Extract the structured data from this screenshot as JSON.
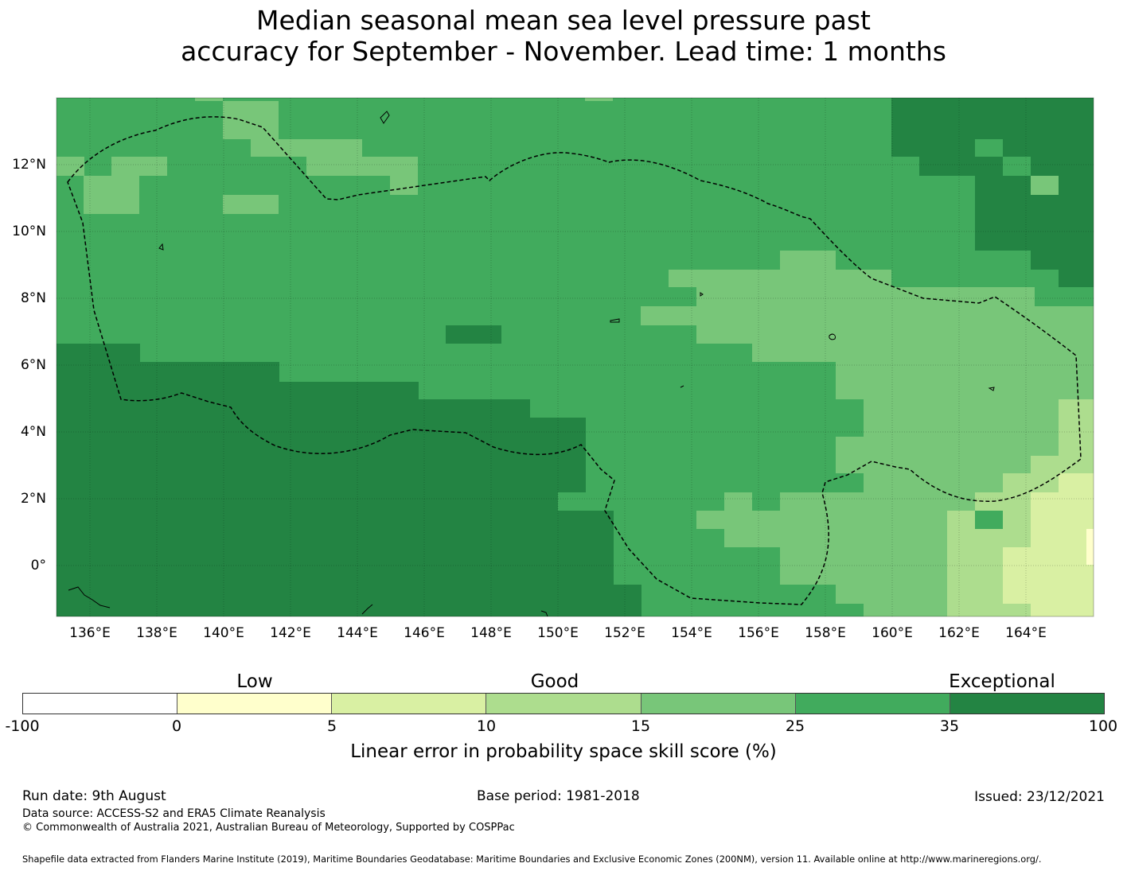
{
  "title": {
    "line1": "Median seasonal mean sea level pressure past",
    "line2": "accuracy for September - November. Lead time: 1 months"
  },
  "map": {
    "lon_range": [
      135,
      166
    ],
    "lat_range": [
      -1.5,
      14
    ],
    "lon_ticks": [
      "136°E",
      "138°E",
      "140°E",
      "142°E",
      "144°E",
      "146°E",
      "148°E",
      "150°E",
      "152°E",
      "154°E",
      "156°E",
      "158°E",
      "160°E",
      "162°E",
      "164°E"
    ],
    "lat_ticks": [
      "12°N",
      "10°N",
      "8°N",
      "6°N",
      "4°N",
      "2°N",
      "0°"
    ],
    "colors": {
      "exceptional": "#238443",
      "good_high": "#41ab5d",
      "good_mid": "#78c679",
      "good_low": "#addd8e",
      "low_high": "#d9f0a3",
      "low_low": "#ffffcc"
    },
    "grid": true
  },
  "colorbar": {
    "categories": [
      "Low",
      "Good",
      "Exceptional"
    ],
    "ticks": [
      "-100",
      "0",
      "5",
      "10",
      "15",
      "25",
      "35",
      "100"
    ],
    "colors": [
      "#ffffff",
      "#ffffcc",
      "#d9f0a3",
      "#addd8e",
      "#78c679",
      "#41ab5d",
      "#238443"
    ],
    "label": "Linear error in probability space skill score (%)"
  },
  "footer": {
    "run_date": "Run date: 9th August",
    "base_period": "Base period: 1981-2018",
    "issued": "Issued: 23/12/2021",
    "data_source": "Data source: ACCESS-S2 and ERA5 Climate Reanalysis",
    "copyright": "© Commonwealth of Australia 2021, Australian Bureau of Meteorology, Supported by COSPPac",
    "shapefile": "Shapefile data extracted from Flanders Marine Institute (2019), Maritime Boundaries Geodatabase: Maritime Boundaries and Exclusive Economic Zones (200NM), version 11. Available online at http://www.marineregions.org/."
  }
}
